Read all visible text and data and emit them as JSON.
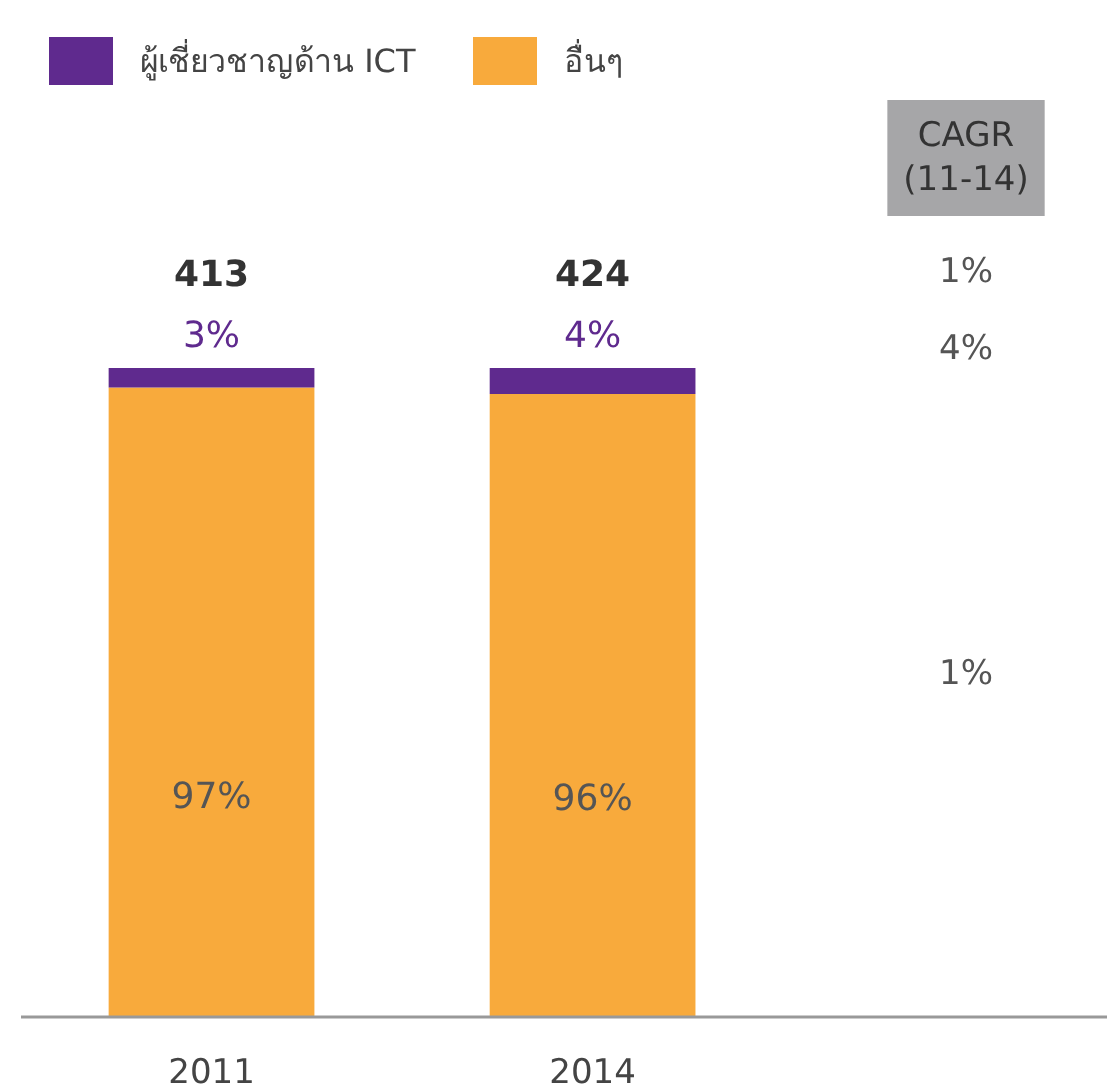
{
  "chart_data": {
    "type": "bar",
    "stacked": true,
    "categories": [
      "2011",
      "2014"
    ],
    "series": [
      {
        "name": "อื่นๆ",
        "color": "#f8aa3c",
        "values": [
          97,
          96
        ],
        "value_labels": [
          "97%",
          "96%"
        ]
      },
      {
        "name": "ผู้เชี่ยวชาญด้าน ICT",
        "color": "#5f2a8e",
        "values": [
          3,
          4
        ],
        "value_labels": [
          "3%",
          "4%"
        ]
      }
    ],
    "tick_labels": "x",
    "annotations": [
      {
        "text": "413",
        "x": "2011",
        "y": 100
      },
      {
        "text": "424",
        "x": "2014",
        "y": 100
      },
      "CAGR\n(11-14)",
      "1%",
      "4%",
      "1%"
    ],
    "legend": "top left"
  }
}
